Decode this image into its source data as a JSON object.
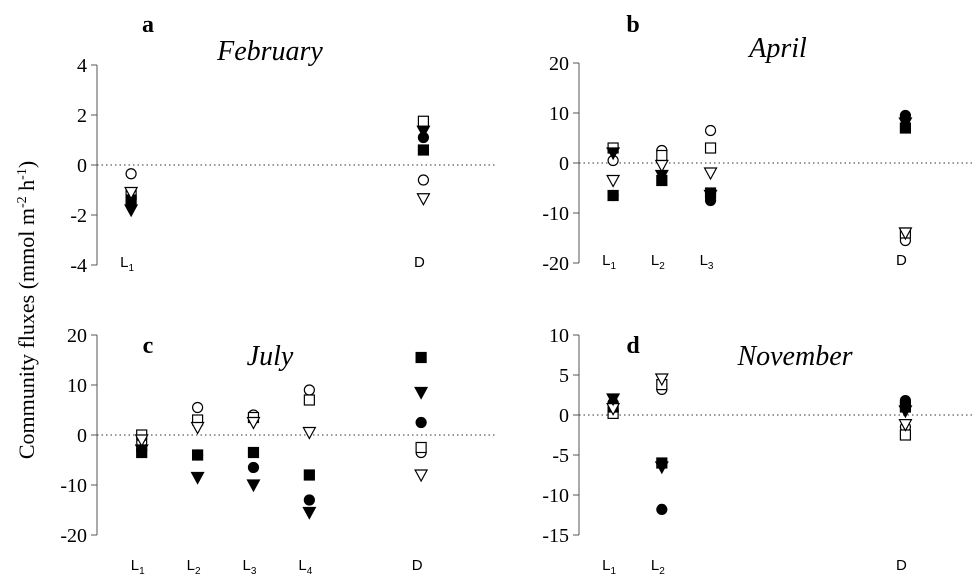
{
  "figure": {
    "ylabel": "Community fluxes (mmol m",
    "ylabel_sup1": "-2",
    "ylabel_mid": " h",
    "ylabel_sup2": "-1",
    "ylabel_end": ")"
  },
  "chart_data": [
    {
      "type": "scatter",
      "panel": "a",
      "title": "February",
      "ylim": [
        -4,
        4
      ],
      "yticks": [
        4,
        2,
        0,
        -2,
        -4
      ],
      "ytick_labels": [
        "4",
        "2",
        "0",
        "-2",
        "-4"
      ],
      "zero_line": "dotted",
      "categories": [
        {
          "main": "L",
          "sub": "1",
          "x": 1
        },
        {
          "main": "D",
          "sub": "",
          "x": 7
        }
      ],
      "x_range": [
        0.3,
        8.1
      ],
      "series": [
        {
          "marker": "open-circle",
          "points": [
            {
              "x": 1,
              "y": -0.35
            },
            {
              "x": 7,
              "y": -0.6
            }
          ]
        },
        {
          "marker": "filled-circle",
          "points": [
            {
              "x": 1,
              "y": -1.35
            },
            {
              "x": 7,
              "y": 1.1
            }
          ]
        },
        {
          "marker": "open-square",
          "points": [
            {
              "x": 1,
              "y": -1.15
            },
            {
              "x": 7,
              "y": 1.75
            }
          ]
        },
        {
          "marker": "filled-square",
          "points": [
            {
              "x": 1,
              "y": -1.4
            },
            {
              "x": 7,
              "y": 0.6
            }
          ]
        },
        {
          "marker": "open-triangle",
          "points": [
            {
              "x": 1,
              "y": -1.1
            },
            {
              "x": 7,
              "y": -1.35
            }
          ]
        },
        {
          "marker": "filled-triangle",
          "points": [
            {
              "x": 1,
              "y": -1.8
            },
            {
              "x": 7,
              "y": 1.35
            }
          ]
        }
      ]
    },
    {
      "type": "scatter",
      "panel": "b",
      "title": "April",
      "ylim": [
        -20,
        20
      ],
      "yticks": [
        20,
        10,
        0,
        -10,
        -20
      ],
      "ytick_labels": [
        "20",
        "10",
        "0",
        "-10",
        "-20"
      ],
      "zero_line": "dotted",
      "categories": [
        {
          "main": "L",
          "sub": "1",
          "x": 1
        },
        {
          "main": "L",
          "sub": "2",
          "x": 2
        },
        {
          "main": "L",
          "sub": "3",
          "x": 3
        },
        {
          "main": "D",
          "sub": "",
          "x": 7
        }
      ],
      "x_range": [
        0.3,
        8.1
      ],
      "series": [
        {
          "marker": "open-circle",
          "points": [
            {
              "x": 1,
              "y": 0.5
            },
            {
              "x": 2,
              "y": 2.5
            },
            {
              "x": 3,
              "y": 6.5
            },
            {
              "x": 7,
              "y": -15.5
            }
          ]
        },
        {
          "marker": "filled-circle",
          "points": [
            {
              "x": 1,
              "y": -6.5
            },
            {
              "x": 2,
              "y": 0.5
            },
            {
              "x": 3,
              "y": -7.5
            },
            {
              "x": 7,
              "y": 9.5
            }
          ]
        },
        {
          "marker": "open-square",
          "points": [
            {
              "x": 1,
              "y": 3.0
            },
            {
              "x": 2,
              "y": 1.5
            },
            {
              "x": 3,
              "y": 3.0
            },
            {
              "x": 7,
              "y": -14.0
            }
          ]
        },
        {
          "marker": "filled-square",
          "points": [
            {
              "x": 1,
              "y": -6.5
            },
            {
              "x": 2,
              "y": -3.5
            },
            {
              "x": 3,
              "y": -6.0
            },
            {
              "x": 7,
              "y": 7.0
            }
          ]
        },
        {
          "marker": "open-triangle",
          "points": [
            {
              "x": 1,
              "y": -3.5
            },
            {
              "x": 2,
              "y": -0.5
            },
            {
              "x": 3,
              "y": -2.0
            },
            {
              "x": 7,
              "y": -14.0
            }
          ]
        },
        {
          "marker": "filled-triangle",
          "points": [
            {
              "x": 1,
              "y": 2.0
            },
            {
              "x": 2,
              "y": -2.5
            },
            {
              "x": 3,
              "y": -6.5
            },
            {
              "x": 7,
              "y": 8.0
            }
          ]
        }
      ]
    },
    {
      "type": "scatter",
      "panel": "c",
      "title": "July",
      "ylim": [
        -20,
        20
      ],
      "yticks": [
        20,
        10,
        0,
        -10,
        -20
      ],
      "ytick_labels": [
        "20",
        "10",
        "0",
        "-10",
        "-20"
      ],
      "zero_line": "dotted",
      "categories": [
        {
          "main": "L",
          "sub": "1",
          "x": 1
        },
        {
          "main": "L",
          "sub": "2",
          "x": 2
        },
        {
          "main": "L",
          "sub": "3",
          "x": 3
        },
        {
          "main": "L",
          "sub": "4",
          "x": 4
        },
        {
          "main": "D",
          "sub": "",
          "x": 6
        }
      ],
      "x_range": [
        0.2,
        7.0
      ],
      "series": [
        {
          "marker": "open-circle",
          "points": [
            {
              "x": 1,
              "y": -1.5
            },
            {
              "x": 2,
              "y": 5.5
            },
            {
              "x": 3,
              "y": 4.0
            },
            {
              "x": 4,
              "y": 9.0
            },
            {
              "x": 6,
              "y": -3.5
            }
          ]
        },
        {
          "marker": "filled-circle",
          "points": [
            {
              "x": 1,
              "y": -3.0
            },
            {
              "x": 2,
              "y": -4.0
            },
            {
              "x": 3,
              "y": -6.5
            },
            {
              "x": 4,
              "y": -13.0
            },
            {
              "x": 6,
              "y": 2.5
            }
          ]
        },
        {
          "marker": "open-square",
          "points": [
            {
              "x": 1,
              "y": 0.0
            },
            {
              "x": 2,
              "y": 3.0
            },
            {
              "x": 3,
              "y": 3.5
            },
            {
              "x": 4,
              "y": 7.0
            },
            {
              "x": 6,
              "y": -2.5
            }
          ]
        },
        {
          "marker": "filled-square",
          "points": [
            {
              "x": 1,
              "y": -3.5
            },
            {
              "x": 2,
              "y": -4.0
            },
            {
              "x": 3,
              "y": -3.5
            },
            {
              "x": 4,
              "y": -8.0
            },
            {
              "x": 6,
              "y": 15.5
            }
          ]
        },
        {
          "marker": "open-triangle",
          "points": [
            {
              "x": 1,
              "y": -1.0
            },
            {
              "x": 2,
              "y": 1.5
            },
            {
              "x": 3,
              "y": 2.5
            },
            {
              "x": 4,
              "y": 0.5
            },
            {
              "x": 6,
              "y": -8.0
            }
          ]
        },
        {
          "marker": "filled-triangle",
          "points": [
            {
              "x": 1,
              "y": -3.0
            },
            {
              "x": 2,
              "y": -8.5
            },
            {
              "x": 3,
              "y": -10.0
            },
            {
              "x": 4,
              "y": -15.5
            },
            {
              "x": 6,
              "y": 8.5
            }
          ]
        }
      ]
    },
    {
      "type": "scatter",
      "panel": "d",
      "title": "November",
      "ylim": [
        -15,
        10
      ],
      "yticks": [
        10,
        5,
        0,
        -5,
        -10,
        -15
      ],
      "ytick_labels": [
        "10",
        "5",
        "0",
        "-5",
        "-10",
        "-15"
      ],
      "zero_line": "dotted",
      "categories": [
        {
          "main": "L",
          "sub": "1",
          "x": 1
        },
        {
          "main": "L",
          "sub": "2",
          "x": 2
        },
        {
          "main": "D",
          "sub": "",
          "x": 7
        }
      ],
      "x_range": [
        0.3,
        8.1
      ],
      "series": [
        {
          "marker": "open-circle",
          "points": [
            {
              "x": 1,
              "y": 0.5
            },
            {
              "x": 2,
              "y": 3.2
            },
            {
              "x": 7,
              "y": -1.5
            }
          ]
        },
        {
          "marker": "filled-circle",
          "points": [
            {
              "x": 1,
              "y": 1.5
            },
            {
              "x": 2,
              "y": -11.8
            },
            {
              "x": 7,
              "y": 1.8
            }
          ]
        },
        {
          "marker": "open-square",
          "points": [
            {
              "x": 1,
              "y": 0.2
            },
            {
              "x": 2,
              "y": 3.8
            },
            {
              "x": 7,
              "y": -2.5
            }
          ]
        },
        {
          "marker": "filled-square",
          "points": [
            {
              "x": 1,
              "y": 1.0
            },
            {
              "x": 2,
              "y": -6.0
            },
            {
              "x": 7,
              "y": 1.0
            }
          ]
        },
        {
          "marker": "open-triangle",
          "points": [
            {
              "x": 1,
              "y": 0.8
            },
            {
              "x": 2,
              "y": 4.5
            },
            {
              "x": 7,
              "y": -1.2
            }
          ]
        },
        {
          "marker": "filled-triangle",
          "points": [
            {
              "x": 1,
              "y": 2.0
            },
            {
              "x": 2,
              "y": -6.5
            },
            {
              "x": 7,
              "y": 0.5
            }
          ]
        }
      ]
    }
  ]
}
